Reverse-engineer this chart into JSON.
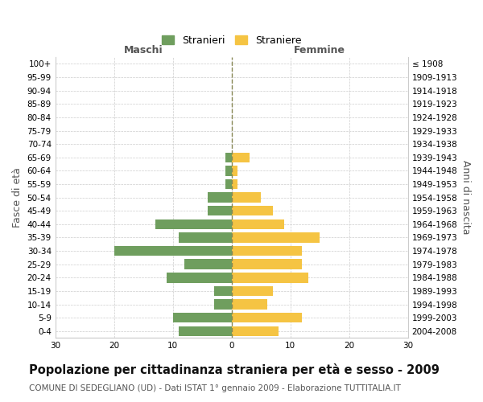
{
  "age_groups": [
    "0-4",
    "5-9",
    "10-14",
    "15-19",
    "20-24",
    "25-29",
    "30-34",
    "35-39",
    "40-44",
    "45-49",
    "50-54",
    "55-59",
    "60-64",
    "65-69",
    "70-74",
    "75-79",
    "80-84",
    "85-89",
    "90-94",
    "95-99",
    "100+"
  ],
  "birth_years": [
    "2004-2008",
    "1999-2003",
    "1994-1998",
    "1989-1993",
    "1984-1988",
    "1979-1983",
    "1974-1978",
    "1969-1973",
    "1964-1968",
    "1959-1963",
    "1954-1958",
    "1949-1953",
    "1944-1948",
    "1939-1943",
    "1934-1938",
    "1929-1933",
    "1924-1928",
    "1919-1923",
    "1914-1918",
    "1909-1913",
    "≤ 1908"
  ],
  "males": [
    9,
    10,
    3,
    3,
    11,
    8,
    20,
    9,
    13,
    4,
    4,
    1,
    1,
    1,
    0,
    0,
    0,
    0,
    0,
    0,
    0
  ],
  "females": [
    8,
    12,
    6,
    7,
    13,
    12,
    12,
    15,
    9,
    7,
    5,
    1,
    1,
    3,
    0,
    0,
    0,
    0,
    0,
    0,
    0
  ],
  "male_color": "#6f9e5e",
  "female_color": "#f5c443",
  "background_color": "#ffffff",
  "grid_color": "#cccccc",
  "dashed_line_color": "#888855",
  "xlim": 30,
  "xlabel_left": "Maschi",
  "xlabel_right": "Femmine",
  "ylabel_left": "Fasce di età",
  "ylabel_right": "Anni di nascita",
  "legend_male": "Stranieri",
  "legend_female": "Straniere",
  "title": "Popolazione per cittadinanza straniera per età e sesso - 2009",
  "subtitle": "COMUNE DI SEDEGLIANO (UD) - Dati ISTAT 1° gennaio 2009 - Elaborazione TUTTITALIA.IT",
  "title_fontsize": 10.5,
  "subtitle_fontsize": 7.5,
  "bar_height": 0.75,
  "tick_fontsize": 7.5,
  "label_fontsize": 9
}
